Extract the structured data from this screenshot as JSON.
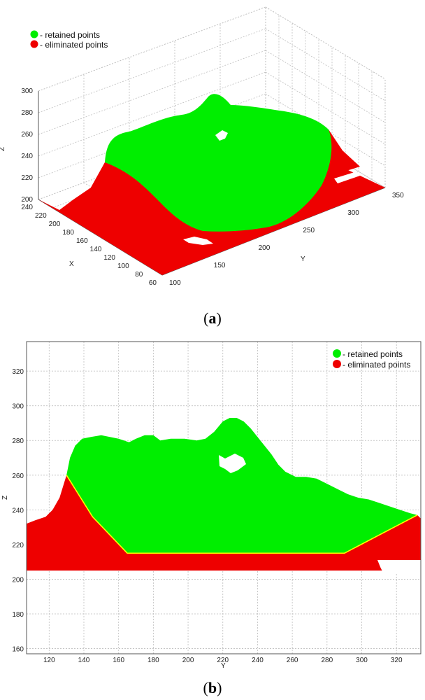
{
  "chart_data": [
    {
      "type": "scatter",
      "subtype": "3d-point-cloud",
      "panel_label": "a",
      "xlabel": "X",
      "ylabel": "Y",
      "zlabel": "Z",
      "x_ticks": [
        60,
        80,
        100,
        120,
        140,
        160,
        180,
        200,
        220,
        240
      ],
      "y_ticks": [
        100,
        150,
        200,
        250,
        300,
        350
      ],
      "z_ticks": [
        200,
        220,
        240,
        260,
        280,
        300
      ],
      "xlim": [
        60,
        240
      ],
      "ylim": [
        100,
        350
      ],
      "zlim": [
        200,
        300
      ],
      "grid": true,
      "legend_position": "top-left",
      "series": [
        {
          "name": "retained points",
          "color": "#00ee00"
        },
        {
          "name": "eliminated points",
          "color": "#ee0000"
        }
      ],
      "legend_labels": [
        "- retained points",
        "- eliminated points"
      ]
    },
    {
      "type": "scatter",
      "subtype": "profile-projection",
      "panel_label": "b",
      "xlabel": "Y",
      "ylabel": "Z",
      "x_ticks": [
        120,
        140,
        160,
        180,
        200,
        220,
        240,
        260,
        280,
        300,
        320
      ],
      "y_ticks": [
        160,
        180,
        200,
        220,
        240,
        260,
        280,
        300,
        320
      ],
      "xlim": [
        107,
        334
      ],
      "ylim": [
        157,
        337
      ],
      "grid": true,
      "legend_position": "top-right",
      "legend_labels": [
        "- retained points",
        "- eliminated points"
      ],
      "series": [
        {
          "name": "retained points",
          "color": "#00ee00",
          "upper_profile": {
            "x": [
              130,
              132,
              135,
              139,
              144,
              150,
              155,
              160,
              166,
              170,
              175,
              180,
              184,
              190,
              198,
              205,
              210,
              215,
              220,
              224,
              228,
              232,
              236,
              240,
              244,
              248,
              252,
              256,
              262,
              268,
              274,
              280,
              286,
              292,
              298,
              304,
              310,
              316,
              322,
              328,
              332
            ],
            "y": [
              260,
              270,
              277,
              281,
              282,
              283,
              282,
              281,
              279,
              281,
              283,
              283,
              280,
              281,
              281,
              280,
              281,
              285,
              291,
              293,
              293,
              291,
              287,
              282,
              277,
              272,
              266,
              262,
              259,
              259,
              258,
              255,
              252,
              249,
              247,
              246,
              244,
              242,
              240,
              238,
              237
            ]
          },
          "lower_boundary": {
            "x": [
              130,
              145,
              165,
              290,
              332
            ],
            "y": [
              260,
              236,
              215,
              215,
              237
            ]
          }
        },
        {
          "name": "eliminated points",
          "color": "#ee0000",
          "baseline": 205,
          "upper_profile": {
            "x": [
              107,
              112,
              118,
              122,
              126,
              130,
              145,
              165,
              290,
              332,
              334
            ],
            "y": [
              232,
              234,
              236,
              240,
              247,
              260,
              236,
              215,
              215,
              237,
              235
            ]
          }
        }
      ]
    }
  ],
  "captions": {
    "a": "a",
    "b": "b"
  }
}
